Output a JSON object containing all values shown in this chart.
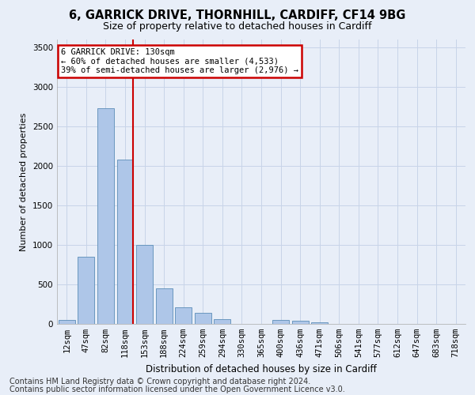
{
  "title1": "6, GARRICK DRIVE, THORNHILL, CARDIFF, CF14 9BG",
  "title2": "Size of property relative to detached houses in Cardiff",
  "xlabel": "Distribution of detached houses by size in Cardiff",
  "ylabel": "Number of detached properties",
  "categories": [
    "12sqm",
    "47sqm",
    "82sqm",
    "118sqm",
    "153sqm",
    "188sqm",
    "224sqm",
    "259sqm",
    "294sqm",
    "330sqm",
    "365sqm",
    "400sqm",
    "436sqm",
    "471sqm",
    "506sqm",
    "541sqm",
    "577sqm",
    "612sqm",
    "647sqm",
    "683sqm",
    "718sqm"
  ],
  "values": [
    55,
    855,
    2730,
    2080,
    1000,
    455,
    210,
    145,
    60,
    0,
    0,
    50,
    40,
    25,
    0,
    0,
    0,
    0,
    0,
    0,
    0
  ],
  "bar_color": "#aec6e8",
  "bar_edge_color": "#5b8db8",
  "grid_color": "#c8d4e8",
  "background_color": "#e8eef8",
  "marker_index": 3,
  "annotation_title": "6 GARRICK DRIVE: 130sqm",
  "annotation_line1": "← 60% of detached houses are smaller (4,533)",
  "annotation_line2": "39% of semi-detached houses are larger (2,976) →",
  "annotation_box_color": "#ffffff",
  "annotation_box_edge": "#cc0000",
  "marker_line_color": "#cc0000",
  "ylim": [
    0,
    3600
  ],
  "yticks": [
    0,
    500,
    1000,
    1500,
    2000,
    2500,
    3000,
    3500
  ],
  "footer1": "Contains HM Land Registry data © Crown copyright and database right 2024.",
  "footer2": "Contains public sector information licensed under the Open Government Licence v3.0.",
  "title1_fontsize": 10.5,
  "title2_fontsize": 9,
  "xlabel_fontsize": 8.5,
  "ylabel_fontsize": 8,
  "tick_fontsize": 7.5,
  "footer_fontsize": 7
}
